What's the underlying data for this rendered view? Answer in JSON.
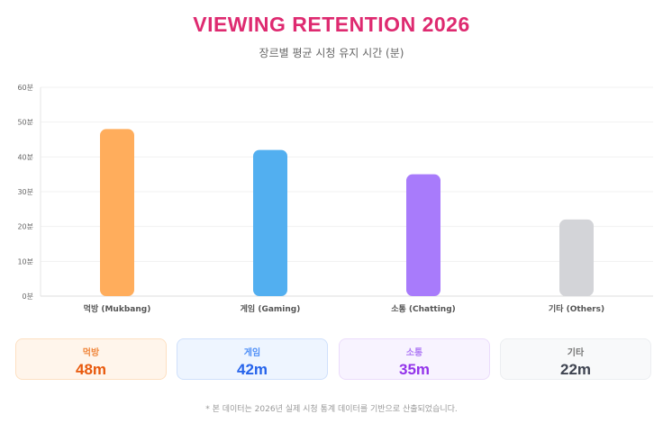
{
  "header": {
    "title": "VIEWING RETENTION 2026",
    "subtitle": "장르별 평균 시청 유지 시간 (분)"
  },
  "chart_data": {
    "type": "bar",
    "categories": [
      "먹방 (Mukbang)",
      "게임 (Gaming)",
      "소통 (Chatting)",
      "기타 (Others)"
    ],
    "values": [
      48,
      42,
      35,
      22
    ],
    "colors": [
      "#ffad5c",
      "#52aff0",
      "#a87bfb",
      "#d3d4d8"
    ],
    "ylim": [
      0,
      60
    ],
    "yticks": [
      "0분",
      "10분",
      "20분",
      "30분",
      "40분",
      "50분",
      "60분"
    ],
    "grid": true
  },
  "cards": [
    {
      "label": "먹방",
      "value": "48m",
      "label_color": "#f0883e",
      "value_color": "#e8590c",
      "bg": "#fff5eb",
      "border": "#fde0c2"
    },
    {
      "label": "게임",
      "value": "42m",
      "label_color": "#4f8ff7",
      "value_color": "#2563eb",
      "bg": "#eef5ff",
      "border": "#cfe0fb"
    },
    {
      "label": "소통",
      "value": "35m",
      "label_color": "#b07cf5",
      "value_color": "#9333ea",
      "bg": "#f8f3ff",
      "border": "#ebdcfb"
    },
    {
      "label": "기타",
      "value": "22m",
      "label_color": "#777",
      "value_color": "#3f4451",
      "bg": "#f8f9fa",
      "border": "#eceef1"
    }
  ],
  "footnote": "* 본 데이터는 2026년 실제 시청 통계 데이터를 기반으로 산출되었습니다."
}
